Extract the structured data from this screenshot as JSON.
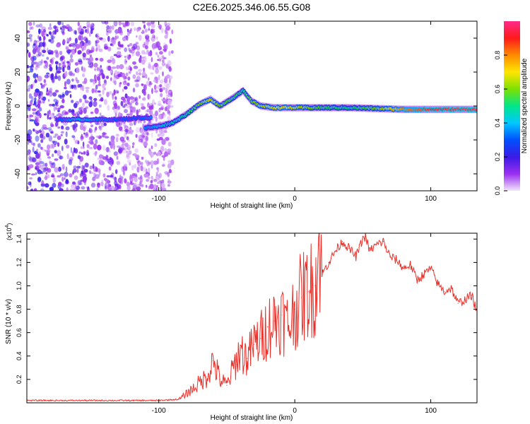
{
  "title": "C2E6.2025.346.06.55.G08",
  "chart_data": [
    {
      "type": "heatmap",
      "xlabel": "Height of straight line (km)",
      "ylabel": "Frequency (Hz)",
      "xlim": [
        -197,
        134
      ],
      "ylim": [
        -50,
        50
      ],
      "xticks": [
        -100,
        0,
        100
      ],
      "yticks": [
        -40,
        -20,
        0,
        20,
        40
      ],
      "colorbar": {
        "label": "Normalized spectral amplitude",
        "range": [
          0,
          1
        ],
        "ticks": [
          0.0,
          0.2,
          0.4,
          0.6,
          0.8
        ],
        "tick_labels": [
          "0.0",
          "0.2",
          "0.4",
          "0.6",
          "0.8"
        ]
      },
      "noise_region": {
        "x_from": -197,
        "x_to": -90,
        "freq_range": [
          -50,
          50
        ]
      },
      "ridge": {
        "x": [
          -110,
          -100,
          -90,
          -80,
          -70,
          -62,
          -55,
          -45,
          -38,
          -32,
          -25,
          -15,
          -5,
          5,
          20,
          40,
          60,
          80,
          100,
          120,
          134
        ],
        "freq": [
          -13,
          -12,
          -10,
          -5,
          1,
          4,
          0,
          5,
          9,
          3,
          0,
          -1,
          -1,
          -1,
          -1,
          -1,
          -1.5,
          -2,
          -2,
          -2,
          -2
        ],
        "amplitude": [
          0.35,
          0.4,
          0.45,
          0.5,
          0.6,
          0.7,
          0.6,
          0.55,
          0.5,
          0.6,
          0.65,
          0.7,
          0.7,
          0.65,
          0.55,
          0.5,
          0.6,
          0.8,
          0.9,
          0.95,
          0.95
        ]
      },
      "secondary_ridge": {
        "x": [
          -175,
          -160,
          -145,
          -130,
          -115,
          -105
        ],
        "freq": [
          -8,
          -8,
          -8,
          -8,
          -7,
          -7
        ],
        "amplitude": [
          0.3,
          0.4,
          0.35,
          0.3,
          0.3,
          0.35
        ]
      }
    },
    {
      "type": "line",
      "xlabel": "Height of straight line (km)",
      "ylabel": "SNR (10 * v/v)",
      "y_multiplier": "(x10",
      "y_multiplier_exp": "4",
      "xlim": [
        -197,
        134
      ],
      "ylim": [
        0,
        1.45
      ],
      "xticks": [
        -100,
        0,
        100
      ],
      "yticks": [
        0.2,
        0.4,
        0.6,
        0.8,
        1.0,
        1.2,
        1.4
      ],
      "ytick_labels": [
        "0.2",
        "0.4",
        "0.6",
        "0.8",
        "1.0",
        "1.2",
        "1.4"
      ],
      "series": [
        {
          "name": "SNR",
          "color": "#e8312a",
          "x": [
            -197,
            -150,
            -100,
            -85,
            -75,
            -65,
            -60,
            -55,
            -50,
            -45,
            -40,
            -35,
            -30,
            -25,
            -20,
            -15,
            -10,
            -5,
            0,
            5,
            10,
            15,
            18,
            20,
            25,
            30,
            35,
            40,
            45,
            50,
            52,
            55,
            60,
            65,
            70,
            75,
            80,
            85,
            90,
            95,
            100,
            105,
            110,
            115,
            120,
            125,
            130,
            134
          ],
          "y": [
            0.02,
            0.02,
            0.02,
            0.03,
            0.12,
            0.22,
            0.36,
            0.2,
            0.15,
            0.3,
            0.45,
            0.38,
            0.5,
            0.55,
            0.65,
            0.7,
            0.75,
            0.65,
            0.8,
            0.9,
            0.95,
            1.0,
            1.35,
            1.1,
            1.2,
            1.3,
            1.38,
            1.32,
            1.25,
            1.4,
            1.42,
            1.3,
            1.35,
            1.38,
            1.25,
            1.22,
            1.15,
            1.18,
            1.05,
            1.1,
            1.15,
            1.02,
            0.95,
            0.98,
            0.85,
            0.88,
            0.92,
            0.78
          ]
        }
      ]
    }
  ]
}
